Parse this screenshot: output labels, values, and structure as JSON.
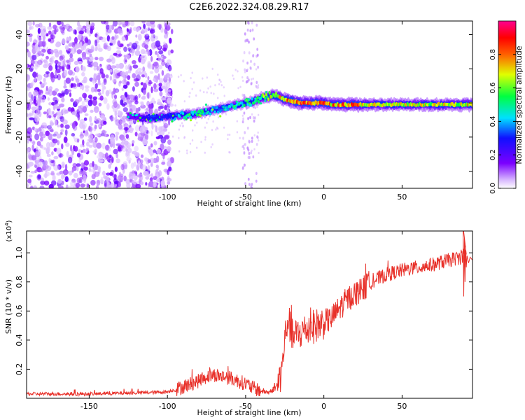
{
  "figure_title": "C2E6.2022.324.08.29.R17",
  "chart_data": [
    {
      "type": "heatmap",
      "title": "C2E6.2022.324.08.29.R17",
      "xlabel": "Height of straight line (km)",
      "ylabel": "Frequency (Hz)",
      "xlim": [
        -190,
        95
      ],
      "ylim": [
        -50,
        48
      ],
      "x_ticks": [
        -150,
        -100,
        -50,
        0,
        50
      ],
      "y_ticks": [
        -40,
        -20,
        0,
        20,
        40
      ],
      "x_tick_labels": [
        "-150",
        "-100",
        "-50",
        "0",
        "50"
      ],
      "y_tick_labels": [
        "-40",
        "-20",
        "0",
        "20",
        "40"
      ],
      "colorbar": {
        "label": "Normalized spectral amplitude",
        "range": [
          0,
          1
        ],
        "ticks": [
          0.0,
          0.2,
          0.4,
          0.6,
          0.8
        ],
        "tick_labels": [
          "0.0",
          "0.2",
          "0.4",
          "0.6",
          "0.8"
        ],
        "colormap": "rainbow (white-violet-blue-cyan-green-yellow-red-magenta)"
      },
      "signal_ridge": {
        "description_points_x": [
          -125,
          -110,
          -100,
          -90,
          -80,
          -70,
          -60,
          -50,
          -45,
          -40,
          -35,
          -30,
          -25,
          -20,
          -15,
          -10,
          -5,
          0,
          5,
          10,
          20,
          30,
          40,
          50,
          60,
          70,
          80,
          90
        ],
        "frequency_hz": [
          -8,
          -9,
          -8,
          -7,
          -6,
          -4,
          -2,
          0,
          1,
          3,
          4,
          4,
          2,
          1,
          0,
          0,
          0,
          0,
          -1,
          -1,
          -1,
          -1,
          -1,
          -1,
          -1,
          -1,
          -1,
          -1
        ],
        "peak_amplitude": [
          0.05,
          0.35,
          0.3,
          0.45,
          0.5,
          0.4,
          0.45,
          0.5,
          0.55,
          0.6,
          0.7,
          0.75,
          0.8,
          0.85,
          0.85,
          0.85,
          0.85,
          0.85,
          0.8,
          0.85,
          0.85,
          0.7,
          0.7,
          0.7,
          0.7,
          0.7,
          0.7,
          0.75
        ]
      },
      "noise_region_x": [
        -190,
        -100
      ]
    },
    {
      "type": "line",
      "xlabel": "Height of straight line (km)",
      "ylabel": "SNR (10 * v/v)",
      "y_multiplier": "(x10^4)",
      "xlim": [
        -190,
        95
      ],
      "ylim": [
        0,
        1.15
      ],
      "x_ticks": [
        -150,
        -100,
        -50,
        0,
        50
      ],
      "y_ticks": [
        0.2,
        0.4,
        0.6,
        0.8,
        1.0
      ],
      "x_tick_labels": [
        "-150",
        "-100",
        "-50",
        "0",
        "50"
      ],
      "y_tick_labels": [
        "0.2",
        "0.4",
        "0.6",
        "0.8",
        "1.0"
      ],
      "series": [
        {
          "color": "#e8312a",
          "x": [
            -190,
            -170,
            -150,
            -130,
            -110,
            -100,
            -95,
            -90,
            -85,
            -80,
            -75,
            -70,
            -65,
            -60,
            -55,
            -50,
            -45,
            -40,
            -35,
            -30,
            -27,
            -25,
            -23,
            -20,
            -15,
            -10,
            -5,
            0,
            5,
            10,
            15,
            20,
            25,
            30,
            40,
            50,
            60,
            70,
            80,
            88,
            90,
            92,
            95
          ],
          "y": [
            0.03,
            0.03,
            0.03,
            0.035,
            0.04,
            0.045,
            0.06,
            0.08,
            0.1,
            0.12,
            0.15,
            0.16,
            0.15,
            0.14,
            0.12,
            0.1,
            0.07,
            0.05,
            0.04,
            0.08,
            0.18,
            0.4,
            0.55,
            0.42,
            0.45,
            0.48,
            0.5,
            0.52,
            0.55,
            0.62,
            0.68,
            0.72,
            0.75,
            0.8,
            0.85,
            0.88,
            0.9,
            0.92,
            0.95,
            0.97,
            1.0,
            0.98,
            0.95
          ]
        }
      ]
    }
  ]
}
